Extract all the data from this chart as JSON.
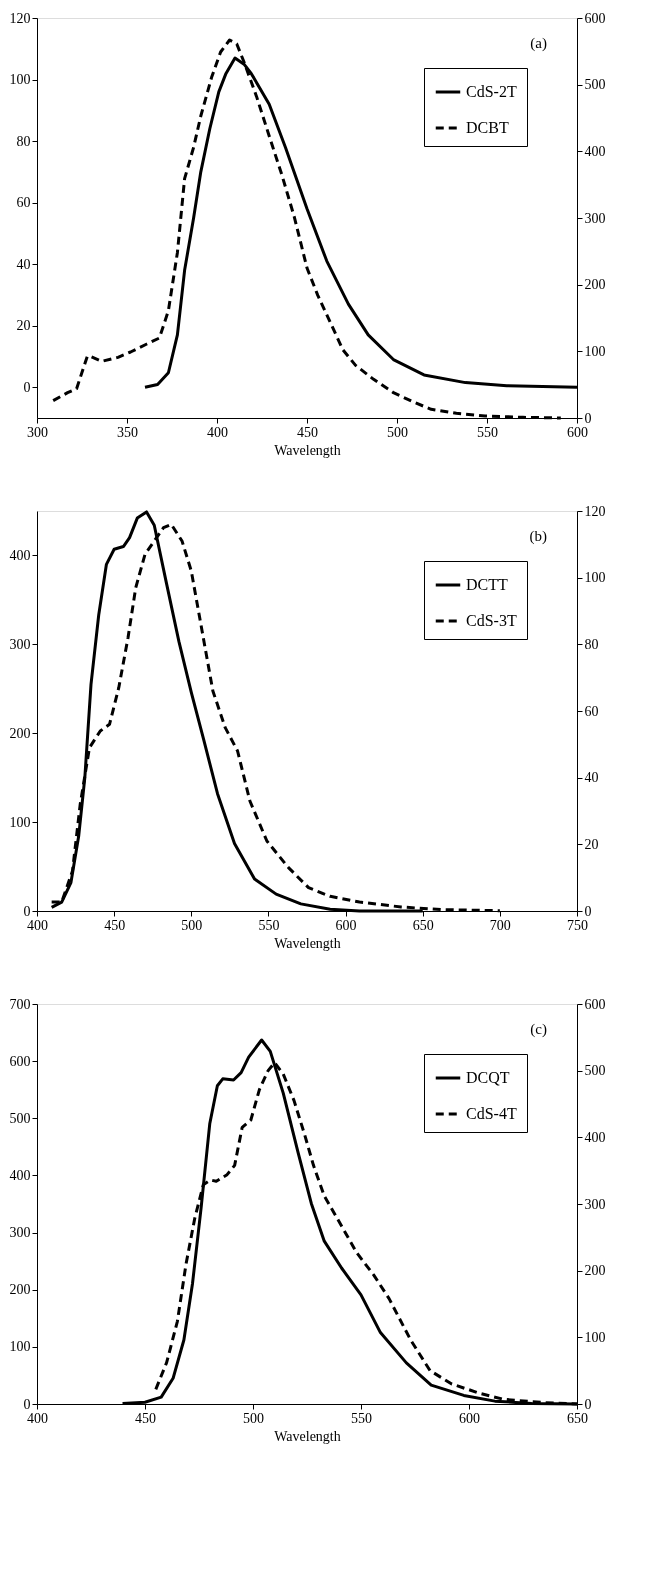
{
  "chart_data": [
    {
      "type": "line",
      "xlabel": "Wavelength",
      "annotations": [
        "(a)"
      ],
      "legend": "top right",
      "xlim": [
        300,
        600
      ],
      "xticks": [
        300,
        350,
        400,
        450,
        500,
        550,
        600
      ],
      "ylim": [
        -10,
        120
      ],
      "yticks": [
        0,
        20,
        40,
        60,
        80,
        100,
        120
      ],
      "y2lim": [
        0,
        600
      ],
      "y2ticks": [
        0,
        100,
        200,
        300,
        400,
        500,
        600
      ],
      "series": [
        {
          "name": "CdS-2T",
          "color": "#000000",
          "line_style": "solid",
          "x": [
            360,
            367,
            373,
            378,
            382,
            387,
            391,
            396,
            401,
            405,
            410,
            415,
            419,
            429,
            438,
            450,
            461,
            473,
            484,
            498,
            515,
            538,
            561,
            600
          ],
          "values": [
            0,
            0.9,
            4.7,
            17,
            38,
            55,
            70,
            84,
            96,
            102,
            107,
            105,
            102,
            92,
            78,
            58,
            41,
            27,
            17,
            9,
            4,
            1.5,
            0.5,
            0
          ]
        },
        {
          "name": "DCBT",
          "color": "#000000",
          "line_style": "dashed",
          "axis": "y2",
          "x": [
            309,
            317,
            322,
            328,
            330,
            336,
            345,
            352,
            361,
            368,
            373,
            378,
            382,
            387,
            391,
            397,
            402,
            407,
            411,
            415,
            422,
            429,
            436,
            443,
            450,
            456,
            463,
            470,
            477,
            487,
            498,
            510,
            519,
            533,
            549,
            570,
            591
          ],
          "values": [
            26,
            38,
            44,
            93,
            92,
            85,
            91,
            99,
            111,
            120,
            161,
            248,
            359,
            406,
            453,
            511,
            549,
            567,
            561,
            534,
            482,
            423,
            365,
            301,
            225,
            184,
            143,
            102,
            79,
            58,
            38,
            23,
            13,
            7,
            3,
            1,
            0
          ]
        }
      ]
    },
    {
      "type": "line",
      "xlabel": "Wavelength",
      "annotations": [
        "(b)"
      ],
      "legend": "top right",
      "xlim": [
        400,
        750
      ],
      "xticks": [
        400,
        450,
        500,
        550,
        600,
        650,
        700,
        750
      ],
      "ylim": [
        0,
        450
      ],
      "yticks": [
        0,
        100,
        200,
        300,
        400
      ],
      "y2lim": [
        0,
        120
      ],
      "y2ticks": [
        0,
        20,
        40,
        60,
        80,
        100,
        120
      ],
      "series": [
        {
          "name": "DCTT",
          "color": "#000000",
          "line_style": "solid",
          "x": [
            409.5,
            416,
            422,
            427,
            431,
            435,
            440,
            445,
            450,
            456,
            460,
            465,
            471,
            476,
            484,
            492,
            500,
            508,
            517,
            528,
            541,
            555,
            571,
            590,
            609,
            650
          ],
          "values": [
            4,
            10,
            32,
            84,
            150,
            255,
            333,
            390,
            407,
            410,
            420,
            442,
            449,
            434,
            368,
            303,
            246,
            193,
            132,
            76,
            36,
            19,
            8,
            2,
            0,
            0
          ]
        },
        {
          "name": "CdS-3T",
          "color": "#000000",
          "line_style": "dashed",
          "axis": "y2",
          "x": [
            409.5,
            416,
            423,
            428,
            434,
            441,
            447,
            453,
            459,
            464,
            470,
            476,
            482,
            487,
            494,
            500,
            507,
            514,
            522,
            530,
            538,
            549,
            563,
            576,
            590,
            609,
            636,
            663,
            700
          ],
          "values": [
            2.7,
            2.7,
            12,
            32,
            49,
            54,
            56,
            67,
            82,
            97,
            107,
            111,
            115,
            116,
            111,
            102,
            84,
            66,
            55,
            48,
            33,
            21,
            13,
            7,
            4.4,
            2.7,
            1.2,
            0.4,
            0.1
          ]
        }
      ]
    },
    {
      "type": "line",
      "xlabel": "Wavelength",
      "annotations": [
        "(c)"
      ],
      "legend": "top right",
      "xlim": [
        400,
        650
      ],
      "xticks": [
        400,
        450,
        500,
        550,
        600,
        650
      ],
      "ylim": [
        0,
        700
      ],
      "yticks": [
        0,
        100,
        200,
        300,
        400,
        500,
        600,
        700
      ],
      "y2lim": [
        0,
        600
      ],
      "y2ticks": [
        0,
        100,
        200,
        300,
        400,
        500,
        600
      ],
      "series": [
        {
          "name": "DCQT",
          "color": "#000000",
          "line_style": "solid",
          "x": [
            439.6,
            450,
            457.5,
            463,
            468,
            472,
            476,
            480,
            483.5,
            486,
            491,
            494.5,
            498,
            504,
            508,
            514,
            521,
            527,
            533,
            541,
            550,
            559,
            571,
            582.5,
            597.6,
            612,
            629,
            650
          ],
          "values": [
            1,
            3,
            12,
            45,
            112,
            211,
            344,
            491,
            557,
            569,
            567,
            580,
            607,
            637,
            617,
            544,
            438,
            351,
            285,
            238,
            191,
            125,
            72,
            33,
            15,
            5,
            1,
            0
          ]
        },
        {
          "name": "CdS-4T",
          "color": "#000000",
          "line_style": "dashed",
          "axis": "y2",
          "x": [
            455,
            460,
            465,
            469,
            473,
            477,
            480.4,
            483,
            488,
            491.5,
            495,
            499,
            503,
            507,
            510,
            514,
            519,
            524,
            528,
            533,
            541,
            548,
            556,
            563,
            573,
            582,
            592,
            605,
            616,
            635,
            650
          ],
          "values": [
            22,
            62,
            124,
            210,
            278,
            329,
            336,
            334,
            344,
            358,
            415,
            426,
            472,
            500,
            512,
            495,
            455,
            403,
            358,
            312,
            267,
            227,
            193,
            158,
            96,
            50,
            30,
            16,
            7,
            2,
            0
          ]
        }
      ]
    }
  ]
}
